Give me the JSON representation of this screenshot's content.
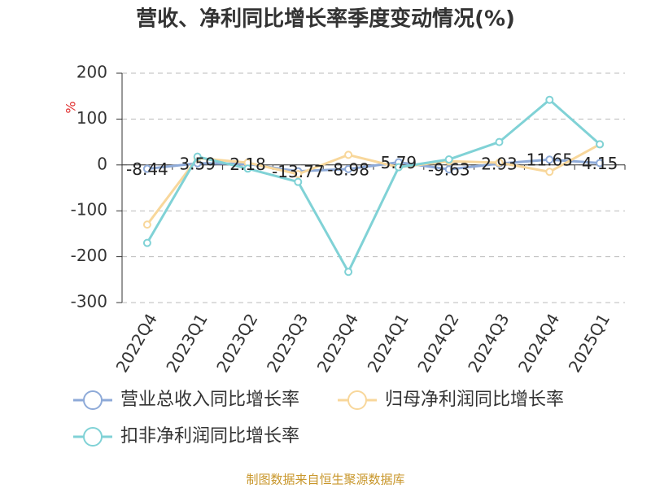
{
  "chart_data": {
    "type": "line",
    "title": "营收、净利同比增长率季度变动情况(%)",
    "y_label": "%",
    "source": "制图数据来自恒生聚源数据库",
    "categories": [
      "2022Q4",
      "2023Q1",
      "2023Q2",
      "2023Q3",
      "2023Q4",
      "2024Q1",
      "2024Q2",
      "2024Q3",
      "2024Q4",
      "2025Q1"
    ],
    "series": [
      {
        "name": "营业总收入同比增长率",
        "color": "#8eaad8",
        "values": [
          -8.44,
          3.59,
          2.18,
          -13.77,
          -8.98,
          5.79,
          -9.63,
          2.93,
          11.65,
          4.15
        ],
        "show_labels": true
      },
      {
        "name": "归母净利润同比增长率",
        "color": "#f8d79b",
        "values": [
          -130,
          15,
          5,
          -20,
          22,
          -5,
          8,
          5,
          -15,
          45
        ]
      },
      {
        "name": "扣非净利润同比增长率",
        "color": "#80d2d6",
        "values": [
          -170,
          18,
          -8,
          -37,
          -233,
          -5,
          12,
          50,
          142,
          45
        ]
      }
    ],
    "ylim": [
      -300,
      200
    ],
    "yticks": [
      -300,
      -200,
      -100,
      0,
      100,
      200
    ],
    "grid": true
  }
}
